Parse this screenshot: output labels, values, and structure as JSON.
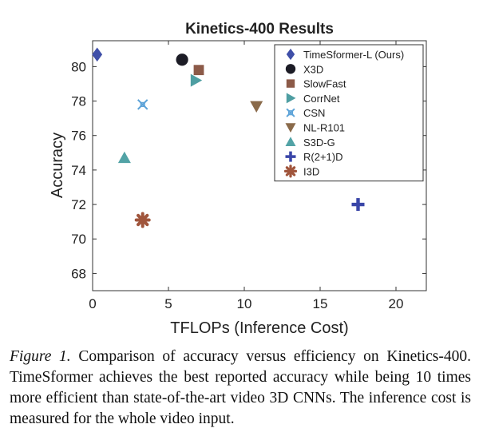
{
  "chart_data": {
    "type": "scatter",
    "title": "Kinetics-400 Results",
    "xlabel": "TFLOPs (Inference Cost)",
    "ylabel": "Accuracy",
    "xlim": [
      0,
      22
    ],
    "ylim": [
      67,
      81.5
    ],
    "xticks": [
      "0",
      "5",
      "10",
      "15",
      "20"
    ],
    "yticks": [
      "68",
      "70",
      "72",
      "74",
      "76",
      "78",
      "80"
    ],
    "grid": false,
    "legend_position": "top-right",
    "series": [
      {
        "name": "TimeSformer-L (Ours)",
        "marker": "diamond",
        "color": "#3f4fa8",
        "x": 0.3,
        "y": 80.7
      },
      {
        "name": "X3D",
        "marker": "circle",
        "color": "#1c1c26",
        "x": 5.9,
        "y": 80.4
      },
      {
        "name": "SlowFast",
        "marker": "square",
        "color": "#8c5a48",
        "x": 7.0,
        "y": 79.8
      },
      {
        "name": "CorrNet",
        "marker": "triangle-right",
        "color": "#4e9ea2",
        "x": 6.8,
        "y": 79.2
      },
      {
        "name": "CSN",
        "marker": "star",
        "color": "#5da3d8",
        "x": 3.3,
        "y": 77.8
      },
      {
        "name": "NL-R101",
        "marker": "triangle-down",
        "color": "#8a6a4a",
        "x": 10.8,
        "y": 77.7
      },
      {
        "name": "S3D-G",
        "marker": "triangle-up",
        "color": "#52a3a6",
        "x": 2.1,
        "y": 74.7
      },
      {
        "name": "R(2+1)D",
        "marker": "plus",
        "color": "#3a46a8",
        "x": 17.5,
        "y": 72.0
      },
      {
        "name": "I3D",
        "marker": "asterisk",
        "color": "#a0553c",
        "x": 3.3,
        "y": 71.1
      }
    ]
  },
  "caption": {
    "label": "Figure 1.",
    "text": " Comparison of accuracy versus efficiency on Kinetics-400. TimeSformer achieves the best reported accuracy while being 10 times more efficient than state-of-the-art video 3D CNNs. The inference cost is measured for the whole video input."
  }
}
